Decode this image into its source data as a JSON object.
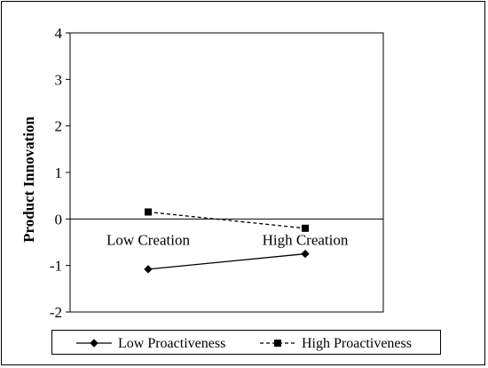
{
  "chart_data": {
    "type": "line",
    "title": "",
    "xlabel": "",
    "ylabel": "Product Innovation",
    "categories": [
      "Low Creation",
      "High Creation"
    ],
    "ylim": [
      -2,
      4
    ],
    "yticks": [
      4,
      3,
      2,
      1,
      0,
      -1,
      -2
    ],
    "grid": false,
    "legend_position": "bottom",
    "series": [
      {
        "name": "Low Proactiveness",
        "values": [
          -1.08,
          -0.75
        ],
        "marker": "diamond",
        "line_style": "solid",
        "color": "#000000"
      },
      {
        "name": "High Proactiveness",
        "values": [
          0.15,
          -0.2
        ],
        "marker": "square",
        "line_style": "dashed",
        "color": "#000000"
      }
    ]
  }
}
